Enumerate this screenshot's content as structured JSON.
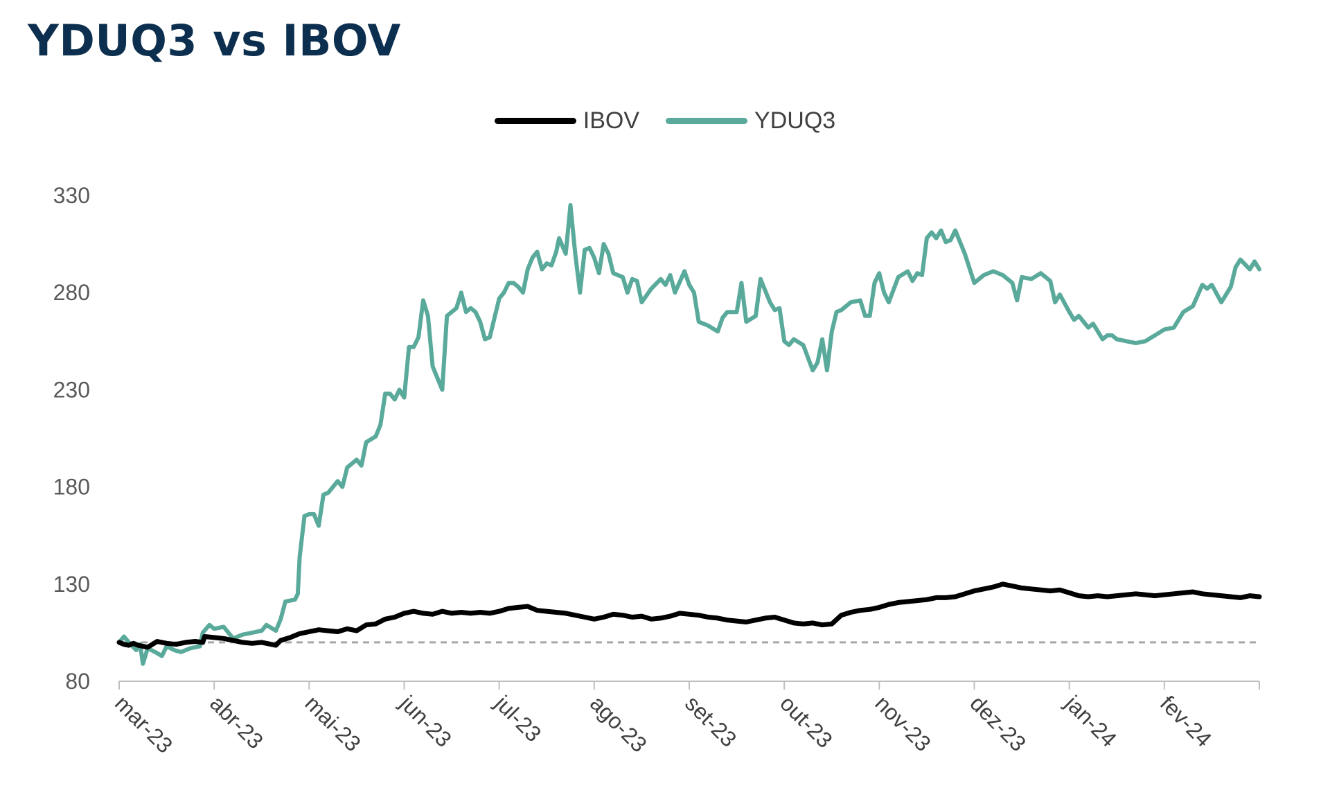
{
  "chart_data": {
    "type": "line",
    "title": "YDUQ3 vs IBOV",
    "xlabel": "",
    "ylabel": "",
    "ylim": [
      80,
      330
    ],
    "yticks": [
      "80",
      "130",
      "180",
      "230",
      "280",
      "330"
    ],
    "categories": [
      "mar-23",
      "abr-23",
      "mai-23",
      "jun-23",
      "jul-23",
      "ago-23",
      "set-23",
      "out-23",
      "nov-23",
      "dez-23",
      "jan-24",
      "fev-24"
    ],
    "baseline": 100,
    "grid": false,
    "legend": "top-center",
    "series": [
      {
        "name": "IBOV",
        "color": "#000000",
        "points": [
          [
            0,
            100
          ],
          [
            0.05,
            99
          ],
          [
            0.1,
            98.5
          ],
          [
            0.15,
            99.5
          ],
          [
            0.2,
            98.5
          ],
          [
            0.3,
            97.5
          ],
          [
            0.4,
            100.5
          ],
          [
            0.5,
            99.5
          ],
          [
            0.6,
            99
          ],
          [
            0.7,
            100
          ],
          [
            0.8,
            100.5
          ],
          [
            0.88,
            100
          ],
          [
            0.9,
            103
          ],
          [
            1.0,
            102.5
          ],
          [
            1.1,
            102
          ],
          [
            1.2,
            101
          ],
          [
            1.3,
            100
          ],
          [
            1.4,
            99.5
          ],
          [
            1.5,
            100
          ],
          [
            1.6,
            99
          ],
          [
            1.65,
            98.5
          ],
          [
            1.7,
            101
          ],
          [
            1.8,
            102.5
          ],
          [
            1.9,
            104.5
          ],
          [
            2.0,
            105.5
          ],
          [
            2.1,
            106.5
          ],
          [
            2.2,
            106
          ],
          [
            2.3,
            105.5
          ],
          [
            2.4,
            107
          ],
          [
            2.5,
            106
          ],
          [
            2.6,
            109
          ],
          [
            2.7,
            109.5
          ],
          [
            2.8,
            112
          ],
          [
            2.9,
            113
          ],
          [
            3.0,
            115
          ],
          [
            3.1,
            116
          ],
          [
            3.2,
            115
          ],
          [
            3.3,
            114.5
          ],
          [
            3.4,
            116
          ],
          [
            3.5,
            115
          ],
          [
            3.6,
            115.5
          ],
          [
            3.7,
            115
          ],
          [
            3.8,
            115.5
          ],
          [
            3.9,
            115
          ],
          [
            4.0,
            116
          ],
          [
            4.1,
            117.5
          ],
          [
            4.2,
            118
          ],
          [
            4.3,
            118.5
          ],
          [
            4.4,
            116.5
          ],
          [
            4.5,
            116
          ],
          [
            4.6,
            115.5
          ],
          [
            4.7,
            115
          ],
          [
            4.8,
            114
          ],
          [
            4.9,
            113
          ],
          [
            5.0,
            112
          ],
          [
            5.1,
            113
          ],
          [
            5.2,
            114.5
          ],
          [
            5.3,
            114
          ],
          [
            5.4,
            113
          ],
          [
            5.5,
            113.5
          ],
          [
            5.6,
            112
          ],
          [
            5.7,
            112.5
          ],
          [
            5.8,
            113.5
          ],
          [
            5.9,
            115
          ],
          [
            6.0,
            114.5
          ],
          [
            6.1,
            114
          ],
          [
            6.2,
            113
          ],
          [
            6.3,
            112.5
          ],
          [
            6.4,
            111.5
          ],
          [
            6.5,
            111
          ],
          [
            6.6,
            110.5
          ],
          [
            6.7,
            111.5
          ],
          [
            6.8,
            112.5
          ],
          [
            6.9,
            113
          ],
          [
            7.0,
            111.5
          ],
          [
            7.1,
            110
          ],
          [
            7.2,
            109.5
          ],
          [
            7.3,
            110
          ],
          [
            7.4,
            109
          ],
          [
            7.5,
            109.5
          ],
          [
            7.6,
            114
          ],
          [
            7.7,
            115.5
          ],
          [
            7.8,
            116.5
          ],
          [
            7.9,
            117
          ],
          [
            8.0,
            118
          ],
          [
            8.1,
            119.5
          ],
          [
            8.2,
            120.5
          ],
          [
            8.3,
            121
          ],
          [
            8.4,
            121.5
          ],
          [
            8.5,
            122
          ],
          [
            8.6,
            123
          ],
          [
            8.7,
            123
          ],
          [
            8.8,
            123.5
          ],
          [
            8.9,
            125
          ],
          [
            9.0,
            126.5
          ],
          [
            9.1,
            127.5
          ],
          [
            9.2,
            128.5
          ],
          [
            9.3,
            130
          ],
          [
            9.4,
            129
          ],
          [
            9.5,
            128
          ],
          [
            9.6,
            127.5
          ],
          [
            9.7,
            127
          ],
          [
            9.8,
            126.5
          ],
          [
            9.9,
            127
          ],
          [
            10.0,
            125.5
          ],
          [
            10.1,
            124
          ],
          [
            10.2,
            123.5
          ],
          [
            10.3,
            124
          ],
          [
            10.4,
            123.5
          ],
          [
            10.5,
            124
          ],
          [
            10.6,
            124.5
          ],
          [
            10.7,
            125
          ],
          [
            10.8,
            124.5
          ],
          [
            10.9,
            124
          ],
          [
            11.0,
            124.5
          ],
          [
            11.1,
            125
          ],
          [
            11.2,
            125.5
          ],
          [
            11.3,
            126
          ],
          [
            11.4,
            125
          ],
          [
            11.5,
            124.5
          ],
          [
            11.6,
            124
          ],
          [
            11.7,
            123.5
          ],
          [
            11.8,
            123
          ],
          [
            11.9,
            124
          ],
          [
            12.0,
            123.5
          ]
        ]
      },
      {
        "name": "YDUQ3",
        "color": "#5aaa9c",
        "points": [
          [
            0,
            100
          ],
          [
            0.05,
            103
          ],
          [
            0.12,
            99
          ],
          [
            0.18,
            96
          ],
          [
            0.22,
            99
          ],
          [
            0.25,
            89
          ],
          [
            0.3,
            97
          ],
          [
            0.38,
            95
          ],
          [
            0.45,
            93
          ],
          [
            0.5,
            98
          ],
          [
            0.58,
            96
          ],
          [
            0.65,
            95
          ],
          [
            0.75,
            97
          ],
          [
            0.85,
            98
          ],
          [
            0.88,
            105
          ],
          [
            0.95,
            109
          ],
          [
            1.0,
            107
          ],
          [
            1.1,
            108
          ],
          [
            1.2,
            102
          ],
          [
            1.3,
            104
          ],
          [
            1.4,
            105
          ],
          [
            1.5,
            106
          ],
          [
            1.55,
            109
          ],
          [
            1.65,
            106
          ],
          [
            1.7,
            112
          ],
          [
            1.75,
            121
          ],
          [
            1.85,
            122
          ],
          [
            1.88,
            125
          ],
          [
            1.9,
            144
          ],
          [
            1.95,
            165
          ],
          [
            2.0,
            166
          ],
          [
            2.05,
            166
          ],
          [
            2.1,
            160
          ],
          [
            2.15,
            176
          ],
          [
            2.2,
            177
          ],
          [
            2.3,
            183
          ],
          [
            2.35,
            180
          ],
          [
            2.4,
            190
          ],
          [
            2.5,
            194
          ],
          [
            2.55,
            191
          ],
          [
            2.6,
            203
          ],
          [
            2.7,
            206
          ],
          [
            2.75,
            212
          ],
          [
            2.8,
            228
          ],
          [
            2.85,
            228
          ],
          [
            2.9,
            225
          ],
          [
            2.95,
            230
          ],
          [
            3.0,
            226
          ],
          [
            3.05,
            252
          ],
          [
            3.1,
            252
          ],
          [
            3.15,
            257
          ],
          [
            3.2,
            276
          ],
          [
            3.25,
            268
          ],
          [
            3.3,
            242
          ],
          [
            3.4,
            230
          ],
          [
            3.45,
            268
          ],
          [
            3.5,
            270
          ],
          [
            3.55,
            272
          ],
          [
            3.6,
            280
          ],
          [
            3.65,
            270
          ],
          [
            3.7,
            272
          ],
          [
            3.75,
            270
          ],
          [
            3.8,
            265
          ],
          [
            3.85,
            256
          ],
          [
            3.9,
            257
          ],
          [
            4.0,
            277
          ],
          [
            4.05,
            280
          ],
          [
            4.1,
            285
          ],
          [
            4.15,
            285
          ],
          [
            4.2,
            283
          ],
          [
            4.25,
            280
          ],
          [
            4.3,
            292
          ],
          [
            4.35,
            298
          ],
          [
            4.4,
            301
          ],
          [
            4.45,
            292
          ],
          [
            4.5,
            295
          ],
          [
            4.55,
            294
          ],
          [
            4.6,
            301
          ],
          [
            4.63,
            308
          ],
          [
            4.7,
            300
          ],
          [
            4.75,
            325
          ],
          [
            4.8,
            300
          ],
          [
            4.85,
            280
          ],
          [
            4.9,
            302
          ],
          [
            4.95,
            303
          ],
          [
            5.0,
            298
          ],
          [
            5.05,
            290
          ],
          [
            5.1,
            305
          ],
          [
            5.15,
            300
          ],
          [
            5.2,
            290
          ],
          [
            5.3,
            288
          ],
          [
            5.35,
            280
          ],
          [
            5.4,
            287
          ],
          [
            5.45,
            286
          ],
          [
            5.5,
            275
          ],
          [
            5.6,
            282
          ],
          [
            5.7,
            287
          ],
          [
            5.75,
            284
          ],
          [
            5.8,
            289
          ],
          [
            5.85,
            280
          ],
          [
            5.95,
            291
          ],
          [
            6.0,
            284
          ],
          [
            6.05,
            280
          ],
          [
            6.1,
            265
          ],
          [
            6.2,
            263
          ],
          [
            6.3,
            260
          ],
          [
            6.35,
            267
          ],
          [
            6.4,
            270
          ],
          [
            6.5,
            270
          ],
          [
            6.55,
            285
          ],
          [
            6.6,
            265
          ],
          [
            6.7,
            268
          ],
          [
            6.75,
            287
          ],
          [
            6.85,
            275
          ],
          [
            6.9,
            271
          ],
          [
            6.95,
            272
          ],
          [
            7.0,
            255
          ],
          [
            7.05,
            253
          ],
          [
            7.1,
            256
          ],
          [
            7.2,
            253
          ],
          [
            7.3,
            240
          ],
          [
            7.35,
            244
          ],
          [
            7.4,
            256
          ],
          [
            7.45,
            240
          ],
          [
            7.5,
            260
          ],
          [
            7.55,
            270
          ],
          [
            7.6,
            271
          ],
          [
            7.7,
            275
          ],
          [
            7.8,
            276
          ],
          [
            7.85,
            268
          ],
          [
            7.9,
            268
          ],
          [
            7.95,
            285
          ],
          [
            8.0,
            290
          ],
          [
            8.05,
            280
          ],
          [
            8.1,
            275
          ],
          [
            8.2,
            288
          ],
          [
            8.3,
            291
          ],
          [
            8.35,
            286
          ],
          [
            8.4,
            290
          ],
          [
            8.45,
            289
          ],
          [
            8.5,
            308
          ],
          [
            8.55,
            311
          ],
          [
            8.6,
            308
          ],
          [
            8.65,
            312
          ],
          [
            8.7,
            306
          ],
          [
            8.75,
            307
          ],
          [
            8.8,
            312
          ],
          [
            8.9,
            300
          ],
          [
            9.0,
            285
          ],
          [
            9.1,
            289
          ],
          [
            9.2,
            291
          ],
          [
            9.3,
            289
          ],
          [
            9.35,
            287
          ],
          [
            9.4,
            285
          ],
          [
            9.45,
            276
          ],
          [
            9.5,
            288
          ],
          [
            9.6,
            287
          ],
          [
            9.7,
            290
          ],
          [
            9.75,
            288
          ],
          [
            9.8,
            286
          ],
          [
            9.85,
            275
          ],
          [
            9.9,
            279
          ],
          [
            10.0,
            270
          ],
          [
            10.05,
            266
          ],
          [
            10.1,
            268
          ],
          [
            10.15,
            265
          ],
          [
            10.2,
            262
          ],
          [
            10.25,
            264
          ],
          [
            10.35,
            256
          ],
          [
            10.4,
            258
          ],
          [
            10.45,
            258
          ],
          [
            10.5,
            256
          ],
          [
            10.6,
            255
          ],
          [
            10.7,
            254
          ],
          [
            10.8,
            255
          ],
          [
            10.9,
            258
          ],
          [
            11.0,
            261
          ],
          [
            11.1,
            262
          ],
          [
            11.2,
            270
          ],
          [
            11.3,
            273
          ],
          [
            11.4,
            284
          ],
          [
            11.45,
            282
          ],
          [
            11.5,
            284
          ],
          [
            11.6,
            275
          ],
          [
            11.7,
            283
          ],
          [
            11.75,
            293
          ],
          [
            11.8,
            297
          ],
          [
            11.9,
            292
          ],
          [
            11.95,
            296
          ],
          [
            12.0,
            292
          ]
        ]
      }
    ]
  }
}
